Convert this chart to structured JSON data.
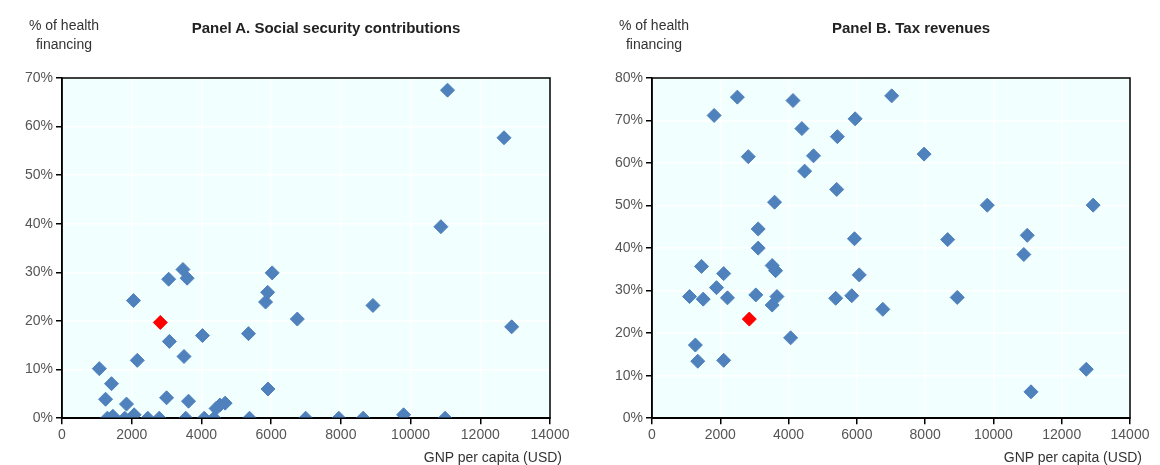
{
  "chart_data": [
    {
      "type": "scatter",
      "title": "Panel A. Social security contributions",
      "xlabel": "GNP per capita (USD)",
      "ylabel": "% of health financing",
      "marker": "diamond",
      "grid": true,
      "legend": false,
      "xlim": [
        0,
        14000
      ],
      "xticks": [
        0,
        2000,
        4000,
        6000,
        8000,
        10000,
        12000,
        14000
      ],
      "ylim": [
        0,
        70
      ],
      "yticks": [
        {
          "value": 0,
          "label": "0%"
        },
        {
          "value": 10,
          "label": "10%"
        },
        {
          "value": 20,
          "label": "20%"
        },
        {
          "value": 30,
          "label": "30%"
        },
        {
          "value": 40,
          "label": "40%"
        },
        {
          "value": 50,
          "label": "50%"
        },
        {
          "value": 60,
          "label": "60%"
        },
        {
          "value": 70,
          "label": "70%"
        }
      ],
      "series": [
        {
          "color": "#4f81bd",
          "x": [
            1070,
            1250,
            1420,
            1300,
            1460,
            1850,
            1800,
            2050,
            2070,
            2160,
            2460,
            2790,
            3000,
            3060,
            3080,
            3470,
            3500,
            3550,
            3590,
            3630,
            4030,
            4080,
            4360,
            4420,
            4530,
            4680,
            5380,
            5350,
            5840,
            5900,
            6030,
            5910,
            6750,
            6990,
            7940,
            8640,
            8920,
            9800,
            10870,
            10990,
            11060,
            12680,
            12900
          ],
          "values": [
            10.2,
            3.9,
            7.1,
            0,
            0.4,
            2.9,
            0,
            24.2,
            0.7,
            11.9,
            0,
            0,
            4.2,
            28.6,
            15.8,
            30.6,
            12.7,
            0,
            28.8,
            3.5,
            17,
            0,
            0,
            2,
            2.7,
            3.1,
            0,
            17.4,
            23.9,
            25.9,
            29.9,
            6,
            20.4,
            0,
            0,
            0,
            23.2,
            0.7,
            39.4,
            0,
            67.5,
            57.7,
            18.8
          ]
        },
        {
          "color": "#ff0000",
          "x": [
            2820
          ],
          "values": [
            19.7
          ]
        }
      ]
    },
    {
      "type": "scatter",
      "title": "Panel B. Tax revenues",
      "xlabel": "GNP per capita (USD)",
      "ylabel": "% of health financing",
      "marker": "diamond",
      "grid": true,
      "legend": false,
      "xlim": [
        0,
        14000
      ],
      "xticks": [
        0,
        2000,
        4000,
        6000,
        8000,
        10000,
        12000,
        14000
      ],
      "ylim": [
        0,
        80
      ],
      "yticks": [
        {
          "value": 0,
          "label": "0%"
        },
        {
          "value": 10,
          "label": "10%"
        },
        {
          "value": 20,
          "label": "20%"
        },
        {
          "value": 30,
          "label": "30%"
        },
        {
          "value": 40,
          "label": "40%"
        },
        {
          "value": 50,
          "label": "50%"
        },
        {
          "value": 60,
          "label": "60%"
        },
        {
          "value": 70,
          "label": "70%"
        },
        {
          "value": 80,
          "label": "80%"
        }
      ],
      "series": [
        {
          "color": "#4f81bd",
          "x": [
            1100,
            1270,
            1340,
            1450,
            1500,
            1820,
            1890,
            2100,
            2100,
            2210,
            2500,
            2820,
            3040,
            3110,
            3110,
            3520,
            3520,
            3590,
            3620,
            3660,
            4060,
            4130,
            4390,
            4470,
            4730,
            5380,
            5410,
            5430,
            5850,
            5930,
            5950,
            6070,
            6760,
            7020,
            7970,
            8660,
            8940,
            9820,
            10890,
            10990,
            11100,
            12720,
            12920
          ],
          "values": [
            28.6,
            17.2,
            13.4,
            35.7,
            28,
            71.2,
            30.7,
            34,
            13.6,
            28.3,
            75.5,
            61.5,
            29,
            40,
            44.5,
            26.6,
            35.9,
            50.8,
            34.7,
            28.6,
            18.9,
            74.7,
            68.1,
            58.1,
            61.7,
            28.2,
            53.8,
            66.2,
            28.8,
            42.2,
            70.4,
            33.7,
            25.6,
            75.8,
            62.1,
            42,
            28.4,
            50.1,
            38.5,
            43,
            6.2,
            11.5,
            50.1
          ]
        },
        {
          "color": "#ff0000",
          "x": [
            2850
          ],
          "values": [
            23.3
          ]
        }
      ]
    }
  ]
}
